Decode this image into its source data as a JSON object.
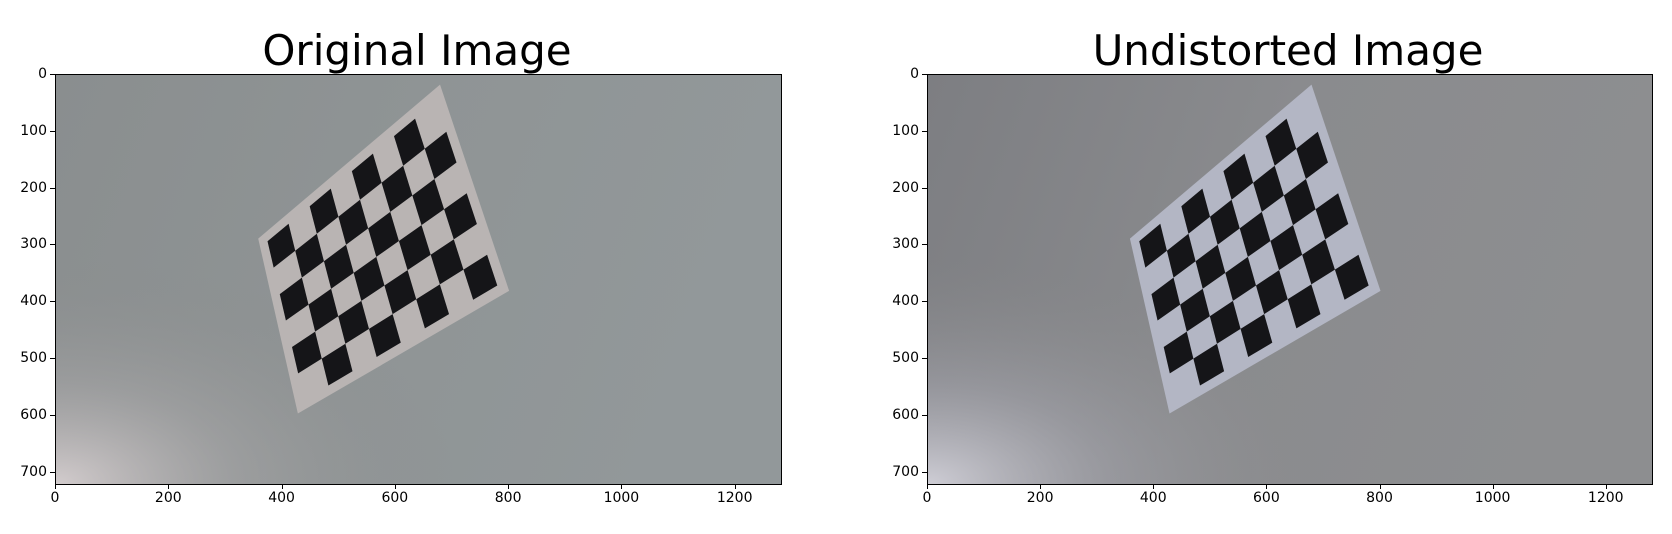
{
  "panels": [
    {
      "title": "Original Image",
      "tint": "original",
      "x_ticks": [
        "0",
        "200",
        "400",
        "600",
        "800",
        "1000",
        "1200"
      ],
      "y_ticks": [
        "0",
        "100",
        "200",
        "300",
        "400",
        "500",
        "600",
        "700"
      ]
    },
    {
      "title": "Undistorted Image",
      "tint": "undistorted",
      "x_ticks": [
        "0",
        "200",
        "400",
        "600",
        "800",
        "1000",
        "1200"
      ],
      "y_ticks": [
        "0",
        "100",
        "200",
        "300",
        "400",
        "500",
        "600",
        "700"
      ]
    }
  ],
  "image_extent": {
    "x_max": 1280,
    "y_max": 720
  },
  "colors": {
    "wall_original": "#8f9495",
    "wall_undistorted": "#8a8b8e",
    "board_light_original": "#b9b4b3",
    "board_light_undistorted": "#b3b6c4",
    "board_dark": "#151518"
  },
  "content": {
    "scene": "checkerboard-calibration-target"
  }
}
